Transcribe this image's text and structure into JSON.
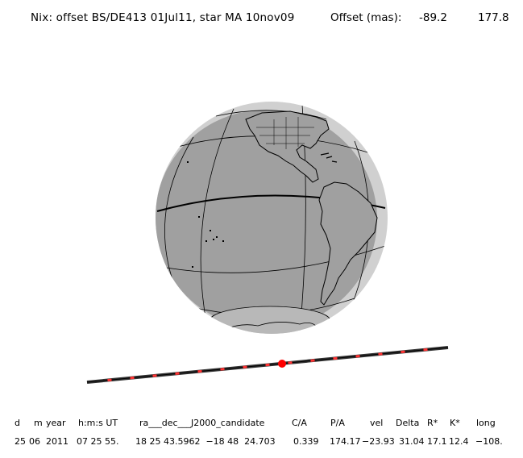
{
  "header": {
    "title": "Nix: offset BS/DE413 01Jul11, star MA 10nov09",
    "offset_label": "Offset (mas):",
    "offset_x": "-89.2",
    "offset_y": "177.8"
  },
  "diagram": {
    "sea_color": "#a0a0a0",
    "limb_color": "#d0d0d0",
    "line_color": "#000000",
    "track_color": "#333333",
    "tick_color": "#ff3333",
    "star_marker_color": "#ff0000"
  },
  "table": {
    "headers": [
      "d",
      "m",
      "year",
      "h:m:s UT",
      "ra___dec___J2000_candidate",
      "C/A",
      "P/A",
      "vel",
      "Delta",
      "R*",
      "K*",
      "long"
    ],
    "values": [
      "25",
      "06",
      "2011",
      "07 25 55.",
      "18 25 43.5962  −18 48  24.703",
      "0.339",
      "174.17",
      "−23.93",
      "31.04",
      "17.1",
      "12.4",
      "−108."
    ]
  }
}
